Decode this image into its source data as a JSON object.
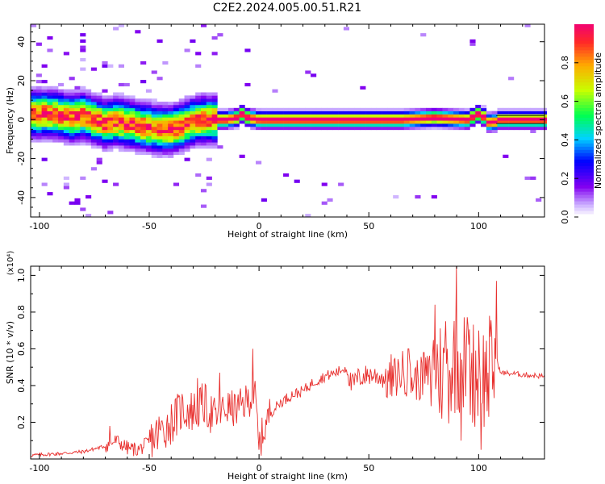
{
  "title": "C2E2.2024.005.00.51.R21",
  "chart_data": [
    {
      "type": "heatmap",
      "xlabel": "Height of straight line (km)",
      "ylabel": "Frequency (Hz)",
      "xlim": [
        -104,
        130
      ],
      "ylim": [
        -50,
        49
      ],
      "xticks": [
        -100,
        -50,
        0,
        50,
        100
      ],
      "yticks": [
        -40,
        -20,
        0,
        20,
        40
      ],
      "ridge": [
        [
          -104,
          3
        ],
        [
          -95,
          3
        ],
        [
          -90,
          2
        ],
        [
          -85,
          1
        ],
        [
          -80,
          2
        ],
        [
          -75,
          0
        ],
        [
          -70,
          -2
        ],
        [
          -65,
          -1
        ],
        [
          -60,
          -2
        ],
        [
          -55,
          -3
        ],
        [
          -50,
          -4
        ],
        [
          -45,
          -5
        ],
        [
          -40,
          -5
        ],
        [
          -35,
          -3
        ],
        [
          -30,
          -1
        ],
        [
          -25,
          0
        ],
        [
          -15,
          0
        ],
        [
          -10,
          1
        ],
        [
          -8,
          3
        ],
        [
          -5,
          1
        ],
        [
          0,
          0
        ],
        [
          50,
          0
        ],
        [
          65,
          0
        ],
        [
          80,
          1
        ],
        [
          95,
          0
        ],
        [
          100,
          3
        ],
        [
          103,
          1
        ],
        [
          106,
          -3
        ],
        [
          108,
          0
        ],
        [
          130,
          0
        ]
      ],
      "colorbar": {
        "label": "Normalized spectral amplitude",
        "ticks": [
          "0.0",
          "0.2",
          "0.4",
          "0.6",
          "0.8"
        ],
        "range": [
          0,
          1
        ]
      }
    },
    {
      "type": "line",
      "xlabel": "Height of straight line (km)",
      "ylabel": "SNR (10 * v/v)",
      "yscale_label": "(x10⁴)",
      "xlim": [
        -104,
        130
      ],
      "ylim": [
        0,
        1.05
      ],
      "xticks": [
        -100,
        -50,
        0,
        50,
        100
      ],
      "yticks": [
        "0.2",
        "0.4",
        "0.6",
        "0.8",
        "1.0"
      ],
      "series": [
        {
          "color": "#e8302e",
          "x": [
            -104,
            -90,
            -80,
            -70,
            -65,
            -60,
            -55,
            -50,
            -45,
            -40,
            -35,
            -30,
            -25,
            -20,
            -15,
            -10,
            -5,
            -2,
            0,
            5,
            10,
            15,
            20,
            25,
            30,
            35,
            40,
            42,
            45,
            50,
            55,
            60,
            65,
            70,
            75,
            80,
            85,
            90,
            95,
            100,
            105,
            108,
            110,
            120,
            130
          ],
          "y": [
            0.02,
            0.03,
            0.04,
            0.07,
            0.1,
            0.06,
            0.05,
            0.09,
            0.15,
            0.2,
            0.27,
            0.26,
            0.3,
            0.22,
            0.28,
            0.27,
            0.32,
            0.36,
            0.08,
            0.25,
            0.31,
            0.35,
            0.37,
            0.42,
            0.45,
            0.47,
            0.5,
            0.4,
            0.44,
            0.46,
            0.45,
            0.42,
            0.48,
            0.43,
            0.44,
            0.5,
            0.45,
            0.55,
            0.5,
            0.45,
            0.45,
            0.55,
            0.47,
            0.46,
            0.45
          ],
          "spikes": [
            {
              "x": -68,
              "y": 0.18
            },
            {
              "x": -28,
              "y": 0.44
            },
            {
              "x": -18,
              "y": 0.47
            },
            {
              "x": -3,
              "y": 0.6
            },
            {
              "x": 0,
              "y": 0.05
            },
            {
              "x": 60,
              "y": 0.57
            },
            {
              "x": 68,
              "y": 0.6
            },
            {
              "x": 75,
              "y": 0.58
            },
            {
              "x": 80,
              "y": 0.84
            },
            {
              "x": 85,
              "y": 0.75
            },
            {
              "x": 90,
              "y": 1.05
            },
            {
              "x": 92,
              "y": 0.1
            },
            {
              "x": 95,
              "y": 0.73
            },
            {
              "x": 100,
              "y": 0.7
            },
            {
              "x": 101,
              "y": 0.05
            },
            {
              "x": 105,
              "y": 0.78
            },
            {
              "x": 108,
              "y": 0.97
            },
            {
              "x": 110,
              "y": 0.47
            }
          ]
        }
      ]
    }
  ]
}
